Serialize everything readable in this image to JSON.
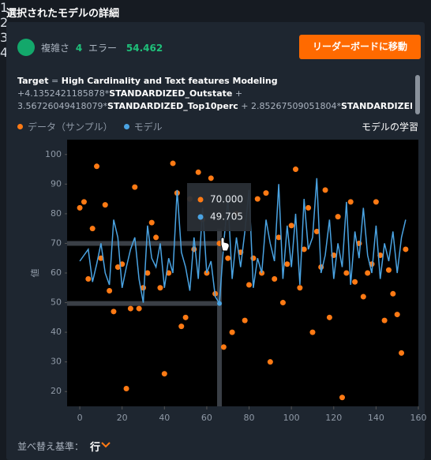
{
  "header": {
    "title": "選択されたモデルの詳細"
  },
  "summary": {
    "complexity_label": "複雑さ",
    "complexity": "4",
    "error_label": "エラー",
    "error": "54.462"
  },
  "button": {
    "label": "リーダーボードに移動"
  },
  "formula": [
    [
      {
        "text": "Target",
        "bold": true
      },
      {
        "text": " = ",
        "bold": false
      },
      {
        "text": "High Cardinality and Text features Modeling",
        "bold": true
      }
    ],
    [
      {
        "text": "+4.1352421185878*",
        "bold": false
      },
      {
        "text": "STANDARDIZED_Outstate",
        "bold": true
      },
      {
        "text": " +",
        "bold": false
      }
    ],
    [
      {
        "text": "3.56726049418079*",
        "bold": false
      },
      {
        "text": "STANDARDIZED_Top10perc",
        "bold": true
      },
      {
        "text": " + 2.85267509051804*",
        "bold": false
      },
      {
        "text": "STANDARDIZED_Enroll",
        "bold": true
      }
    ]
  ],
  "train_link": "モデルの学習",
  "badges": [
    "1",
    "2",
    "3",
    "4"
  ],
  "sort": {
    "label": "並べ替え基準：",
    "value": "行"
  },
  "tooltip": [
    "70.000",
    "49.705"
  ],
  "chart_data": {
    "type": "scatter",
    "y_label": "値",
    "x": [
      0,
      2,
      4,
      6,
      8,
      10,
      12,
      14,
      16,
      18,
      20,
      22,
      24,
      26,
      28,
      30,
      32,
      34,
      36,
      38,
      40,
      42,
      44,
      46,
      48,
      50,
      52,
      54,
      56,
      58,
      60,
      62,
      64,
      66,
      68,
      70,
      72,
      74,
      76,
      78,
      80,
      82,
      84,
      86,
      88,
      90,
      92,
      94,
      96,
      98,
      100,
      102,
      104,
      106,
      108,
      110,
      112,
      114,
      116,
      118,
      120,
      122,
      124,
      126,
      128,
      130,
      132,
      134,
      136,
      138,
      140,
      142,
      144,
      146,
      148,
      150,
      152,
      154
    ],
    "series": [
      {
        "name": "データ（サンプル）",
        "color": "#ff7a14",
        "mode": "markers",
        "values": [
          82,
          84,
          58,
          75,
          96,
          65,
          83,
          54,
          47,
          62,
          63,
          21,
          48,
          89,
          48,
          55,
          60,
          77,
          72,
          55,
          26,
          60,
          97,
          87,
          42,
          45,
          85,
          68,
          94,
          78,
          60,
          92,
          53,
          70,
          35,
          65,
          40,
          80,
          67,
          44,
          56,
          65,
          85,
          60,
          87,
          30,
          58,
          72,
          50,
          63,
          76,
          95,
          55,
          68,
          82,
          40,
          74,
          62,
          88,
          45,
          66,
          79,
          18,
          60,
          84,
          57,
          70,
          52,
          60,
          63,
          84,
          66,
          44,
          61,
          53,
          46,
          33,
          68
        ]
      },
      {
        "name": "モデル",
        "color": "#4aa3e2",
        "mode": "lines",
        "values": [
          64,
          66,
          68,
          57,
          63,
          70,
          60,
          56,
          78,
          72,
          55,
          62,
          68,
          72,
          58,
          50,
          76,
          65,
          62,
          70,
          55,
          65,
          60,
          88,
          67,
          62,
          54,
          72,
          58,
          82,
          60,
          64,
          52,
          49.705,
          70,
          85,
          58,
          72,
          62,
          74,
          88,
          55,
          65,
          60,
          78,
          70,
          64,
          90,
          58,
          76,
          62,
          80,
          56,
          85,
          68,
          72,
          92,
          60,
          66,
          78,
          58,
          70,
          62,
          84,
          56,
          74,
          65,
          82,
          66,
          60,
          76,
          58,
          70,
          64,
          74,
          60,
          72,
          78
        ]
      }
    ],
    "hover_index": 33,
    "xlim": [
      -6,
      160
    ],
    "xticks": [
      0,
      20,
      40,
      60,
      80,
      100,
      120,
      140,
      160
    ],
    "ylim": [
      15,
      105
    ],
    "yticks": [
      20,
      30,
      40,
      50,
      60,
      70,
      80,
      90,
      100
    ]
  }
}
